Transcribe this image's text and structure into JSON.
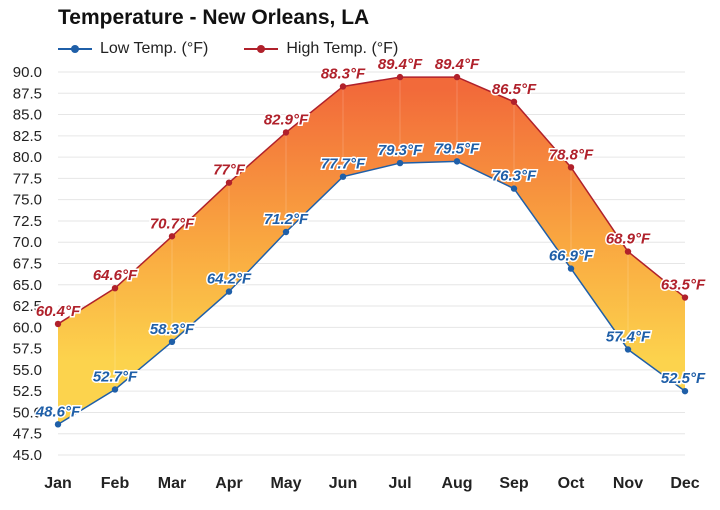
{
  "title": "Temperature - New Orleans, LA",
  "chart_data": {
    "type": "area",
    "categories": [
      "Jan",
      "Feb",
      "Mar",
      "Apr",
      "May",
      "Jun",
      "Jul",
      "Aug",
      "Sep",
      "Oct",
      "Nov",
      "Dec"
    ],
    "series": [
      {
        "name": "Low Temp. (°F)",
        "values": [
          48.6,
          52.7,
          58.3,
          64.2,
          71.2,
          77.7,
          79.3,
          79.5,
          76.3,
          66.9,
          57.4,
          52.5
        ],
        "labels": [
          "48.6°F",
          "52.7°F",
          "58.3°F",
          "64.2°F",
          "71.2°F",
          "77.7°F",
          "79.3°F",
          "79.5°F",
          "76.3°F",
          "66.9°F",
          "57.4°F",
          "52.5°F"
        ],
        "color": "#1f5fa8"
      },
      {
        "name": "High Temp. (°F)",
        "values": [
          60.4,
          64.6,
          70.7,
          77.0,
          82.9,
          88.3,
          89.4,
          89.4,
          86.5,
          78.8,
          68.9,
          63.5
        ],
        "labels": [
          "60.4°F",
          "64.6°F",
          "70.7°F",
          "77°F",
          "82.9°F",
          "88.3°F",
          "89.4°F",
          "89.4°F",
          "86.5°F",
          "78.8°F",
          "68.9°F",
          "63.5°F"
        ],
        "color": "#b0212b"
      }
    ],
    "ylim": [
      45,
      90
    ],
    "yticks": [
      "45.0",
      "47.5",
      "50.0",
      "52.5",
      "55.0",
      "57.5",
      "60.0",
      "62.5",
      "65.0",
      "67.5",
      "70.0",
      "72.5",
      "75.0",
      "77.5",
      "80.0",
      "82.5",
      "85.0",
      "87.5",
      "90.0"
    ],
    "grid": true,
    "legend_position": "top-left",
    "fill_colors": {
      "cool": "#fcd34d",
      "hot": "#f26a3a"
    }
  }
}
